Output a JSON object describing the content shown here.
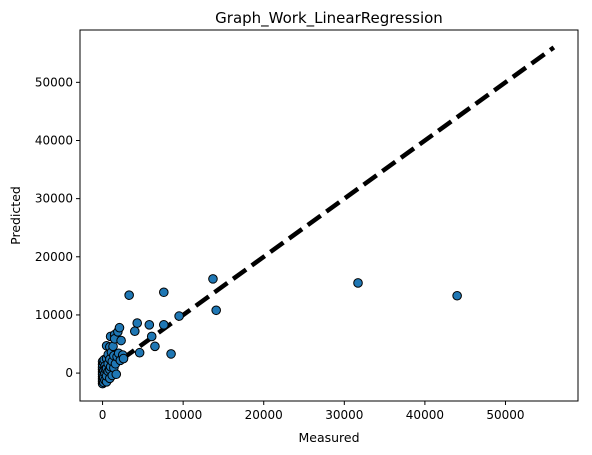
{
  "chart_data": {
    "type": "scatter",
    "title": "Graph_Work_LinearRegression",
    "xlabel": "Measured",
    "ylabel": "Predicted",
    "xlim": [
      -2800,
      59000
    ],
    "ylim": [
      -4800,
      59000
    ],
    "xticks": [
      0,
      10000,
      20000,
      30000,
      40000,
      50000
    ],
    "yticks": [
      0,
      10000,
      20000,
      30000,
      40000,
      50000
    ],
    "grid": false,
    "point_color": "#1f77b4",
    "edge_color": "#000000",
    "line_color": "#000000",
    "reference_line": {
      "x": [
        0,
        56000
      ],
      "y": [
        0,
        56000
      ],
      "style": "dashed"
    },
    "points": [
      [
        0,
        -1800
      ],
      [
        0,
        -1400
      ],
      [
        0,
        -1000
      ],
      [
        0,
        -600
      ],
      [
        0,
        -200
      ],
      [
        0,
        200
      ],
      [
        0,
        600
      ],
      [
        0,
        1000
      ],
      [
        0,
        1500
      ],
      [
        0,
        2000
      ],
      [
        150,
        -1600
      ],
      [
        150,
        -800
      ],
      [
        150,
        400
      ],
      [
        150,
        1800
      ],
      [
        200,
        2300
      ],
      [
        300,
        -1200
      ],
      [
        300,
        0
      ],
      [
        300,
        1200
      ],
      [
        350,
        700
      ],
      [
        500,
        -1500
      ],
      [
        500,
        -500
      ],
      [
        500,
        800
      ],
      [
        500,
        2500
      ],
      [
        500,
        4700
      ],
      [
        700,
        300
      ],
      [
        700,
        1600
      ],
      [
        700,
        3200
      ],
      [
        900,
        -900
      ],
      [
        900,
        600
      ],
      [
        900,
        2400
      ],
      [
        900,
        4500
      ],
      [
        1000,
        6300
      ],
      [
        1000,
        1100
      ],
      [
        1100,
        3600
      ],
      [
        1200,
        -400
      ],
      [
        1200,
        2000
      ],
      [
        1300,
        4600
      ],
      [
        1400,
        900
      ],
      [
        1400,
        3000
      ],
      [
        1500,
        6600
      ],
      [
        1500,
        5900
      ],
      [
        1600,
        1600
      ],
      [
        1700,
        -200
      ],
      [
        1800,
        2800
      ],
      [
        1900,
        7100
      ],
      [
        2000,
        3400
      ],
      [
        2100,
        7800
      ],
      [
        2200,
        2200
      ],
      [
        2300,
        5600
      ],
      [
        2500,
        3100
      ],
      [
        2600,
        2500
      ],
      [
        3300,
        13400
      ],
      [
        4000,
        7200
      ],
      [
        4300,
        8600
      ],
      [
        4600,
        3500
      ],
      [
        5800,
        8300
      ],
      [
        6100,
        6300
      ],
      [
        6500,
        4600
      ],
      [
        7600,
        8300
      ],
      [
        7600,
        13900
      ],
      [
        8500,
        3300
      ],
      [
        9500,
        9800
      ],
      [
        13700,
        16200
      ],
      [
        14100,
        10800
      ],
      [
        31700,
        15500
      ],
      [
        44000,
        13300
      ]
    ]
  }
}
